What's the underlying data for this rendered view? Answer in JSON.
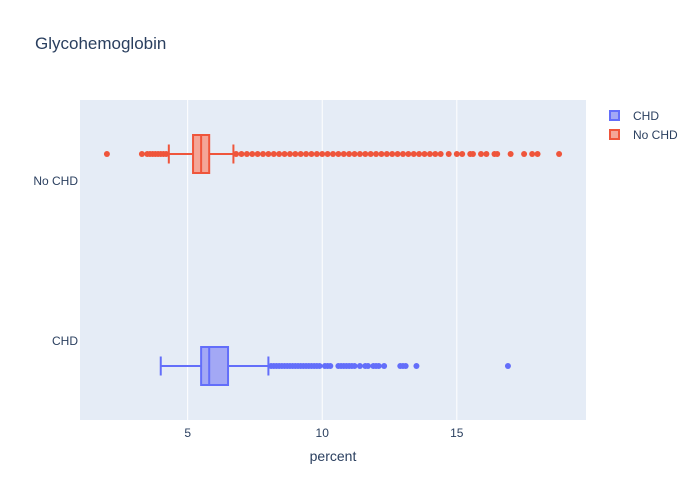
{
  "chart_data": {
    "type": "box",
    "title": "Glycohemoglobin",
    "xlabel": "percent",
    "ylabel": "",
    "xlim": [
      1.0,
      19.8
    ],
    "x_ticks": [
      5,
      10,
      15
    ],
    "orientation": "horizontal",
    "grid": true,
    "legend_placement": "top-right",
    "series": [
      {
        "name": "CHD",
        "category": "CHD",
        "color": "#636efa",
        "fill": "#a3a8f5",
        "whisker_low": 4.0,
        "q1": 5.5,
        "median": 5.8,
        "q3": 6.5,
        "whisker_high": 8.0,
        "outliers": [
          8.1,
          8.2,
          8.3,
          8.4,
          8.5,
          8.6,
          8.7,
          8.8,
          8.9,
          9.0,
          9.1,
          9.2,
          9.3,
          9.4,
          9.5,
          9.6,
          9.7,
          9.8,
          9.9,
          10.1,
          10.2,
          10.3,
          10.6,
          10.7,
          10.8,
          10.9,
          11.0,
          11.1,
          11.2,
          11.4,
          11.6,
          11.7,
          11.9,
          12.0,
          12.1,
          12.3,
          12.9,
          13.0,
          13.1,
          13.5,
          16.9
        ]
      },
      {
        "name": "No CHD",
        "category": "No CHD",
        "color": "#ef553b",
        "fill": "#f4a597",
        "whisker_low": 4.3,
        "q1": 5.2,
        "median": 5.5,
        "q3": 5.8,
        "whisker_high": 6.7,
        "outliers": [
          2.0,
          3.3,
          3.5,
          3.6,
          3.7,
          3.8,
          3.9,
          4.0,
          4.1,
          4.2,
          6.8,
          7.0,
          7.2,
          7.4,
          7.6,
          7.8,
          8.0,
          8.2,
          8.4,
          8.6,
          8.8,
          9.0,
          9.2,
          9.4,
          9.6,
          9.8,
          10.0,
          10.2,
          10.4,
          10.6,
          10.8,
          11.0,
          11.2,
          11.4,
          11.6,
          11.8,
          12.0,
          12.2,
          12.4,
          12.6,
          12.8,
          13.0,
          13.2,
          13.4,
          13.6,
          13.8,
          14.0,
          14.2,
          14.4,
          14.7,
          15.0,
          15.2,
          15.5,
          15.6,
          15.9,
          16.1,
          16.4,
          16.5,
          17.0,
          17.5,
          17.8,
          18.0,
          18.8
        ]
      }
    ]
  }
}
